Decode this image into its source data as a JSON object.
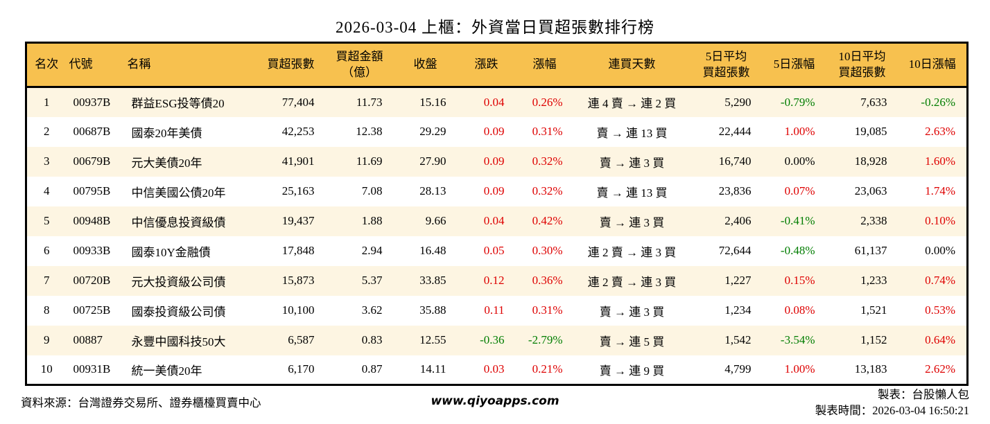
{
  "title": "2026-03-04 上櫃：外資當日買超張數排行榜",
  "colors": {
    "up_red": "#DE0000",
    "down_green": "#007D00",
    "header_bg": "#F7C14F",
    "row_alt_bg": "#FDF5E2",
    "border_black": "#000000"
  },
  "chart_data": {
    "type": "table",
    "title": "2026-03-04 上櫃：外資當日買超張數排行榜",
    "columns": [
      {
        "key": "rank",
        "label": "名次",
        "align": "center",
        "header_align": "center"
      },
      {
        "key": "code",
        "label": "代號",
        "align": "left",
        "header_align": "left"
      },
      {
        "key": "name",
        "label": "名稱",
        "align": "left",
        "header_align": "left"
      },
      {
        "key": "net_buy_shares",
        "label": "買超張數",
        "align": "right",
        "header_align": "center"
      },
      {
        "key": "net_buy_amount_100m",
        "label": "買超金額\n（億）",
        "align": "right",
        "header_align": "center"
      },
      {
        "key": "close",
        "label": "收盤",
        "align": "right",
        "header_align": "center"
      },
      {
        "key": "change",
        "label": "漲跌",
        "align": "right",
        "header_align": "center",
        "colored": true
      },
      {
        "key": "change_pct",
        "label": "漲幅",
        "align": "right",
        "header_align": "center",
        "colored": true
      },
      {
        "key": "buy_streak",
        "label": "連買天數",
        "align": "center",
        "header_align": "center"
      },
      {
        "key": "avg5_net_buy",
        "label": "5日平均\n買超張數",
        "align": "right",
        "header_align": "center"
      },
      {
        "key": "pct5",
        "label": "5日漲幅",
        "align": "right",
        "header_align": "center",
        "colored": true
      },
      {
        "key": "avg10_net_buy",
        "label": "10日平均\n買超張數",
        "align": "right",
        "header_align": "center"
      },
      {
        "key": "pct10",
        "label": "10日漲幅",
        "align": "right",
        "header_align": "center",
        "colored": true
      }
    ],
    "rows": [
      [
        "1",
        "00937B",
        "群益ESG投等債20",
        "77,404",
        "11.73",
        "15.16",
        "0.04",
        "0.26%",
        "連 4 賣 → 連 2 買",
        "5,290",
        "-0.79%",
        "7,633",
        "-0.26%"
      ],
      [
        "2",
        "00687B",
        "國泰20年美債",
        "42,253",
        "12.38",
        "29.29",
        "0.09",
        "0.31%",
        "賣 → 連 13 買",
        "22,444",
        "1.00%",
        "19,085",
        "2.63%"
      ],
      [
        "3",
        "00679B",
        "元大美債20年",
        "41,901",
        "11.69",
        "27.90",
        "0.09",
        "0.32%",
        "賣 → 連 3 買",
        "16,740",
        "0.00%",
        "18,928",
        "1.60%"
      ],
      [
        "4",
        "00795B",
        "中信美國公債20年",
        "25,163",
        "7.08",
        "28.13",
        "0.09",
        "0.32%",
        "賣 → 連 13 買",
        "23,836",
        "0.07%",
        "23,063",
        "1.74%"
      ],
      [
        "5",
        "00948B",
        "中信優息投資級債",
        "19,437",
        "1.88",
        "9.66",
        "0.04",
        "0.42%",
        "賣 → 連 3 買",
        "2,406",
        "-0.41%",
        "2,338",
        "0.10%"
      ],
      [
        "6",
        "00933B",
        "國泰10Y金融債",
        "17,848",
        "2.94",
        "16.48",
        "0.05",
        "0.30%",
        "連 2 賣 → 連 3 買",
        "72,644",
        "-0.48%",
        "61,137",
        "0.00%"
      ],
      [
        "7",
        "00720B",
        "元大投資級公司債",
        "15,873",
        "5.37",
        "33.85",
        "0.12",
        "0.36%",
        "連 2 賣 → 連 3 買",
        "1,227",
        "0.15%",
        "1,233",
        "0.74%"
      ],
      [
        "8",
        "00725B",
        "國泰投資級公司債",
        "10,100",
        "3.62",
        "35.88",
        "0.11",
        "0.31%",
        "賣 → 連 3 買",
        "1,234",
        "0.08%",
        "1,521",
        "0.53%"
      ],
      [
        "9",
        "00887",
        "永豐中國科技50大",
        "6,587",
        "0.83",
        "12.55",
        "-0.36",
        "-2.79%",
        "賣 → 連 5 買",
        "1,542",
        "-3.54%",
        "1,152",
        "0.64%"
      ],
      [
        "10",
        "00931B",
        "統一美債20年",
        "6,170",
        "0.87",
        "14.11",
        "0.03",
        "0.21%",
        "賣 → 連 9 買",
        "4,799",
        "1.00%",
        "13,183",
        "2.62%"
      ]
    ]
  },
  "footer": {
    "source": "資料來源：台灣證券交易所、證券櫃檯買賣中心",
    "website": "www.qiyoapps.com",
    "maker": "製表：台股懶人包",
    "time": "製表時間：2026-03-04 16:50:21"
  }
}
